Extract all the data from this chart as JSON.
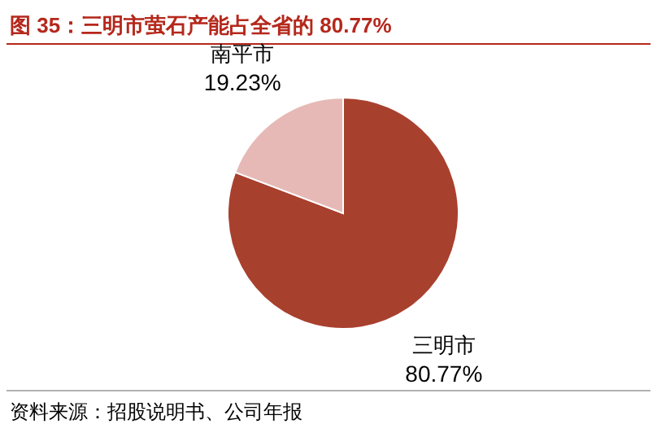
{
  "chart_data": {
    "type": "pie",
    "title": "图 35：三明市萤石产能占全省的 80.77%",
    "categories": [
      "三明市",
      "南平市"
    ],
    "values": [
      80.77,
      19.23
    ],
    "value_labels": [
      "80.77%",
      "19.23%"
    ],
    "colors": [
      "#a8402e",
      "#e6b9b6"
    ],
    "annotations": [
      "资料来源：招股说明书、公司年报"
    ]
  }
}
